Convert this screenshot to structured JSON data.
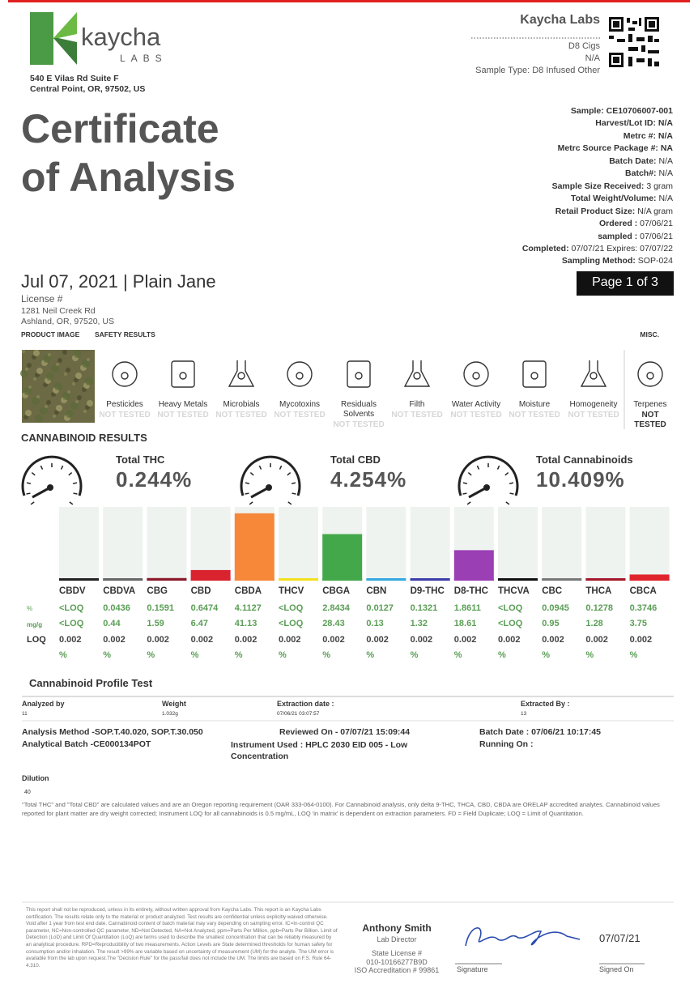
{
  "header": {
    "logo_name": "kaycha",
    "logo_sub": "LABS",
    "address": [
      "540 E Vilas Rd Suite F",
      "Central Point, OR, 97502, US"
    ],
    "lab": "Kaycha Labs",
    "product": "D8 Cigs",
    "product_code": "N/A",
    "sample_type": "Sample Type: D8 Infused Other"
  },
  "title": [
    "Certificate",
    "of Analysis"
  ],
  "sample_info": [
    {
      "label": "Sample:",
      "value": "CE10706007-001"
    },
    {
      "label": "Harvest/Lot ID:",
      "value": "N/A"
    },
    {
      "label": "Metrc #:",
      "value": "N/A"
    },
    {
      "label": "Metrc Source Package #:",
      "value": "NA"
    },
    {
      "label": "Batch Date:",
      "value": "N/A"
    },
    {
      "label": "Batch#:",
      "value": "N/A"
    },
    {
      "label": "Sample Size Received:",
      "value": "3 gram"
    },
    {
      "label": "Total Weight/Volume:",
      "value": "N/A"
    },
    {
      "label": "Retail Product Size:",
      "value": "N/A gram"
    },
    {
      "label": "Ordered :",
      "value": "07/06/21"
    },
    {
      "label": "sampled :",
      "value": "07/06/21"
    },
    {
      "label": "Completed:",
      "value": "07/07/21 Expires: 07/07/22"
    },
    {
      "label": "Sampling Method:",
      "value": "SOP-024"
    }
  ],
  "client": {
    "date_line": "Jul 07, 2021 | Plain Jane",
    "license": "License #",
    "address": [
      "1281 Neil Creek Rd",
      "Ashland, OR, 97520, US"
    ]
  },
  "page": "Page 1 of 3",
  "sections": {
    "product_image": "PRODUCT IMAGE",
    "safety": "SAFETY RESULTS",
    "misc": "MISC."
  },
  "safety": [
    {
      "name": "Pesticides",
      "status": "NOT TESTED"
    },
    {
      "name": "Heavy Metals",
      "status": "NOT TESTED"
    },
    {
      "name": "Microbials",
      "status": "NOT TESTED"
    },
    {
      "name": "Mycotoxins",
      "status": "NOT TESTED"
    },
    {
      "name": "Residuals Solvents",
      "status": "NOT TESTED"
    },
    {
      "name": "Filth",
      "status": "NOT TESTED"
    },
    {
      "name": "Water Activity",
      "status": "NOT TESTED"
    },
    {
      "name": "Moisture",
      "status": "NOT TESTED"
    },
    {
      "name": "Homogeneity",
      "status": "NOT TESTED"
    }
  ],
  "misc": {
    "name": "Terpenes",
    "status": "NOT TESTED"
  },
  "cannabinoid_title": "CANNABINOID RESULTS",
  "totals": [
    {
      "label": "Total THC",
      "value": "0.244%"
    },
    {
      "label": "Total CBD",
      "value": "4.254%"
    },
    {
      "label": "Total Cannabinoids",
      "value": "10.409%"
    }
  ],
  "cannabinoids": {
    "ylim": [
      0,
      4.5
    ],
    "row_labels": [
      "%",
      "mg/g",
      "LOQ"
    ],
    "names": [
      "CBDV",
      "CBDVA",
      "CBG",
      "CBD",
      "CBDA",
      "THCV",
      "CBGA",
      "CBN",
      "D9-THC",
      "D8-THC",
      "THCVA",
      "CBC",
      "THCA",
      "CBCA"
    ],
    "colors": [
      "#222222",
      "#666666",
      "#8b1a2b",
      "#d9232e",
      "#f7883a",
      "#f2e01a",
      "#43a84a",
      "#35a8e0",
      "#3b3ea8",
      "#9b3fb5",
      "#111111",
      "#777777",
      "#a3182a",
      "#e0242c"
    ],
    "percent": [
      "<LOQ",
      0.0436,
      0.1591,
      0.6474,
      4.1127,
      "<LOQ",
      2.8434,
      0.0127,
      0.1321,
      1.8611,
      "<LOQ",
      0.0945,
      0.1278,
      0.3746
    ],
    "mg_g": [
      "<LOQ",
      0.44,
      1.59,
      6.47,
      41.13,
      "<LOQ",
      28.43,
      0.13,
      1.32,
      18.61,
      "<LOQ",
      0.95,
      1.28,
      3.75
    ],
    "loq": [
      0.002,
      0.002,
      0.002,
      0.002,
      0.002,
      0.002,
      0.002,
      0.002,
      0.002,
      0.002,
      0.002,
      0.002,
      0.002,
      0.002
    ],
    "loq_units": [
      "%",
      "%",
      "%",
      "%",
      "%",
      "%",
      "%",
      "%",
      "%",
      "%",
      "%",
      "%",
      "%",
      "%"
    ]
  },
  "profile": {
    "title": "Cannabinoid Profile Test",
    "fields": [
      {
        "label": "Analyzed by",
        "value": "11"
      },
      {
        "label": "Weight",
        "value": "1.032g"
      },
      {
        "label": "Extraction date :",
        "value": "07/06/21 03:07:57"
      },
      {
        "label": "Extracted By :",
        "value": "13"
      }
    ],
    "method": "Analysis Method -SOP.T.40.020, SOP.T.30.050",
    "batch": "Analytical Batch -CE000134POT",
    "reviewed": "Reviewed On - 07/07/21 15:09:44",
    "instrument": "Instrument Used : HPLC 2030 EID 005 - Low Concentration",
    "batch_date": "Batch Date : 07/06/21 10:17:45",
    "running": "Running On :",
    "dilution_label": "Dilution",
    "dilution": "40",
    "note": "\"Total THC\" and \"Total CBD\" are calculated values and are an Oregon reporting requirement (OAR 333-064-0100). For Cannabinoid analysis, only delta 9-THC, THCA, CBD, CBDA are ORELAP accredited analytes. Cannabinoid values reported for plant matter are dry weight corrected; Instrument LOQ for all cannabinoids is 0.5 mg/mL, LOQ 'in matrix' is dependent on extraction parameters. FD = Field Duplicate; LOQ = Limit of Quantitation."
  },
  "footer": {
    "disclaimer": "This report shall not be reproduced, unless in its entirety, without written approval from Kaycha Labs. This report is an Kaycha Labs certification. The results relate only to the material or product analyzed. Test results are confidential unless explicitly waived otherwise. Void after 1 year from test end date. Cannabinoid content of batch material may vary depending on sampling error. IC=In-control QC parameter, NC=Non-controlled QC parameter, ND=Not Detected, NA=Not Analyzed, ppm=Parts Per Million, ppb=Parts Per Billion. Limit of Detection (LoD) and Limit Of Quantitation (LoQ) are terms used to describe the smallest concentration that can be reliably measured by an analytical procedure. RPD=Reproducibility of two measurements. Action Levels are State determined thresholds for human safety for consumption and/or inhalation. The result >99% are variable based on uncertainty of measurement (UM) for the analyte. The UM error is available from the lab upon request.The \"Decision Rule\" for the pass/fail does not include the UM. The limits are based on F.S. Rule 64-4.310.",
    "signer": "Anthony Smith",
    "role": "Lab Director",
    "state_license": "State License #",
    "license_no": "010-10166277B9D",
    "iso": "ISO Accreditation # 99861",
    "signature_label": "Signature",
    "signed_date": "07/07/21",
    "signed_on": "Signed On"
  }
}
